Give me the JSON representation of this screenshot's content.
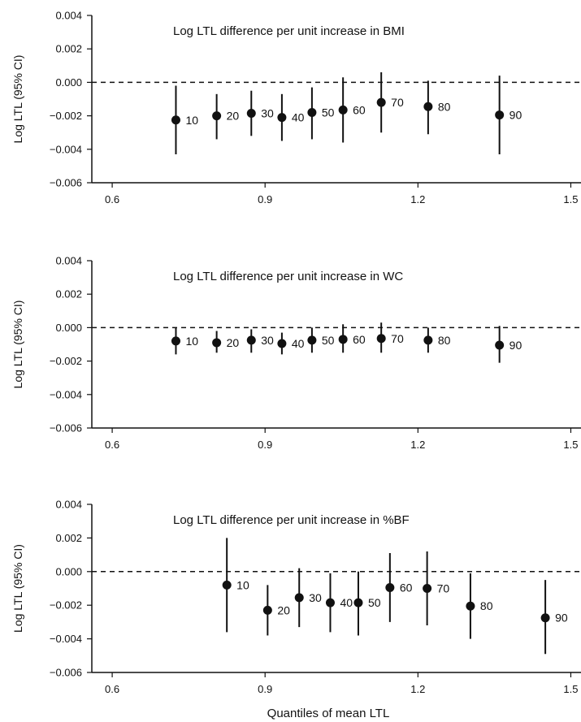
{
  "chart_data": [
    {
      "type": "scatter",
      "title": "Log LTL difference per unit increase in BMI",
      "ylabel": "Log LTL (95% CI)",
      "xlabel": "",
      "xlim": [
        0.56,
        1.52
      ],
      "ylim": [
        -0.006,
        0.004
      ],
      "xticks": [
        0.6,
        0.9,
        1.2,
        1.5
      ],
      "yticks": [
        0.004,
        0.002,
        0.0,
        -0.002,
        -0.004,
        -0.006
      ],
      "xtick_labels": [
        "0.6",
        "0.9",
        "1.2",
        "1.5"
      ],
      "ytick_labels": [
        "0.004",
        "0.002",
        "0.000",
        "−0.002",
        "−0.004",
        "−0.006"
      ],
      "reference_line_y": 0,
      "points": [
        {
          "label": "10",
          "x": 0.725,
          "y": -0.00225,
          "lower": -0.0043,
          "upper": -0.0002
        },
        {
          "label": "20",
          "x": 0.805,
          "y": -0.002,
          "lower": -0.0034,
          "upper": -0.0007
        },
        {
          "label": "30",
          "x": 0.873,
          "y": -0.00185,
          "lower": -0.0032,
          "upper": -0.0005
        },
        {
          "label": "40",
          "x": 0.933,
          "y": -0.0021,
          "lower": -0.0035,
          "upper": -0.0007
        },
        {
          "label": "50",
          "x": 0.992,
          "y": -0.0018,
          "lower": -0.0034,
          "upper": -0.0003
        },
        {
          "label": "60",
          "x": 1.053,
          "y": -0.00165,
          "lower": -0.0036,
          "upper": 0.0003
        },
        {
          "label": "70",
          "x": 1.128,
          "y": -0.0012,
          "lower": -0.003,
          "upper": 0.0006
        },
        {
          "label": "80",
          "x": 1.22,
          "y": -0.00145,
          "lower": -0.0031,
          "upper": 0.0001
        },
        {
          "label": "90",
          "x": 1.36,
          "y": -0.00195,
          "lower": -0.0043,
          "upper": 0.0004
        }
      ]
    },
    {
      "type": "scatter",
      "title": "Log LTL difference per unit increase in WC",
      "ylabel": "Log LTL (95% CI)",
      "xlabel": "",
      "xlim": [
        0.56,
        1.52
      ],
      "ylim": [
        -0.006,
        0.004
      ],
      "xticks": [
        0.6,
        0.9,
        1.2,
        1.5
      ],
      "yticks": [
        0.004,
        0.002,
        0.0,
        -0.002,
        -0.004,
        -0.006
      ],
      "xtick_labels": [
        "0.6",
        "0.9",
        "1.2",
        "1.5"
      ],
      "ytick_labels": [
        "0.004",
        "0.002",
        "0.000",
        "−0.002",
        "−0.004",
        "−0.006"
      ],
      "reference_line_y": 0,
      "points": [
        {
          "label": "10",
          "x": 0.725,
          "y": -0.0008,
          "lower": -0.0016,
          "upper": 0.0
        },
        {
          "label": "20",
          "x": 0.805,
          "y": -0.0009,
          "lower": -0.0015,
          "upper": -0.0002
        },
        {
          "label": "30",
          "x": 0.873,
          "y": -0.00075,
          "lower": -0.0015,
          "upper": -0.0001
        },
        {
          "label": "40",
          "x": 0.933,
          "y": -0.00095,
          "lower": -0.0016,
          "upper": -0.0003
        },
        {
          "label": "50",
          "x": 0.992,
          "y": -0.00075,
          "lower": -0.0015,
          "upper": 0.0
        },
        {
          "label": "60",
          "x": 1.053,
          "y": -0.0007,
          "lower": -0.0015,
          "upper": 0.0002
        },
        {
          "label": "70",
          "x": 1.128,
          "y": -0.00065,
          "lower": -0.0015,
          "upper": 0.0003
        },
        {
          "label": "80",
          "x": 1.22,
          "y": -0.00075,
          "lower": -0.0015,
          "upper": 0.0
        },
        {
          "label": "90",
          "x": 1.36,
          "y": -0.00105,
          "lower": -0.0021,
          "upper": 0.0001
        }
      ]
    },
    {
      "type": "scatter",
      "title": "Log LTL difference per unit increase in %BF",
      "ylabel": "Log LTL (95% CI)",
      "xlabel": "Quantiles of mean LTL",
      "xlim": [
        0.56,
        1.52
      ],
      "ylim": [
        -0.006,
        0.004
      ],
      "xticks": [
        0.6,
        0.9,
        1.2,
        1.5
      ],
      "yticks": [
        0.004,
        0.002,
        0.0,
        -0.002,
        -0.004,
        -0.006
      ],
      "xtick_labels": [
        "0.6",
        "0.9",
        "1.2",
        "1.5"
      ],
      "ytick_labels": [
        "0.004",
        "0.002",
        "0.000",
        "−0.002",
        "−0.004",
        "−0.006"
      ],
      "reference_line_y": 0,
      "points": [
        {
          "label": "10",
          "x": 0.825,
          "y": -0.0008,
          "lower": -0.0036,
          "upper": 0.002
        },
        {
          "label": "20",
          "x": 0.905,
          "y": -0.0023,
          "lower": -0.0038,
          "upper": -0.0008
        },
        {
          "label": "30",
          "x": 0.967,
          "y": -0.00155,
          "lower": -0.0033,
          "upper": 0.0002
        },
        {
          "label": "40",
          "x": 1.028,
          "y": -0.00185,
          "lower": -0.0036,
          "upper": -0.0001
        },
        {
          "label": "50",
          "x": 1.083,
          "y": -0.00185,
          "lower": -0.0038,
          "upper": 0.0
        },
        {
          "label": "60",
          "x": 1.145,
          "y": -0.00095,
          "lower": -0.003,
          "upper": 0.0011
        },
        {
          "label": "70",
          "x": 1.218,
          "y": -0.001,
          "lower": -0.0032,
          "upper": 0.0012
        },
        {
          "label": "80",
          "x": 1.303,
          "y": -0.00205,
          "lower": -0.004,
          "upper": -0.0001
        },
        {
          "label": "90",
          "x": 1.45,
          "y": -0.00275,
          "lower": -0.0049,
          "upper": -0.0005
        }
      ]
    }
  ],
  "colors": {
    "ink": "#111111",
    "background": "#ffffff"
  }
}
